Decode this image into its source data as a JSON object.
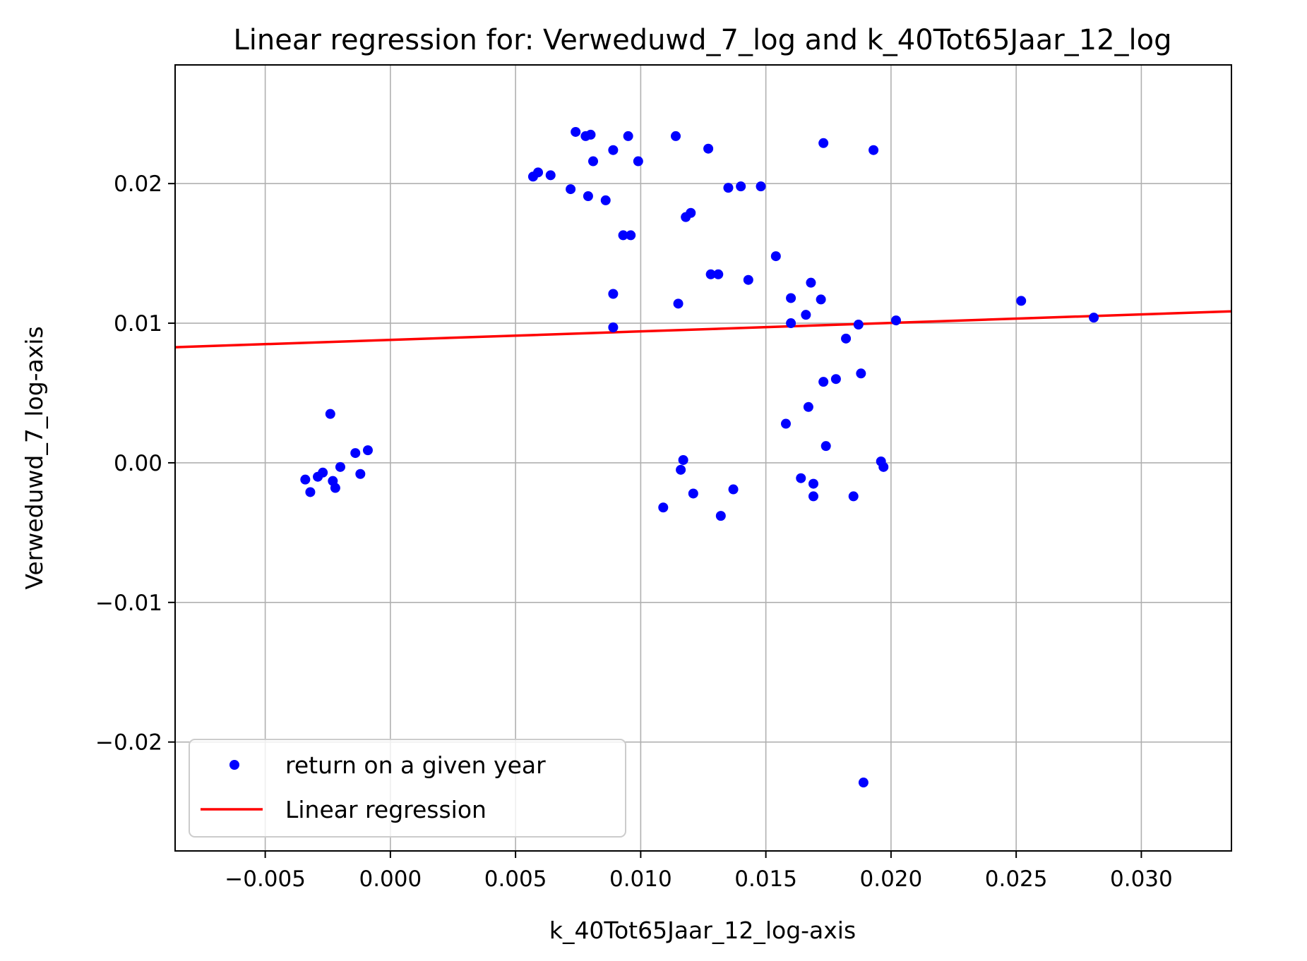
{
  "chart_data": {
    "type": "scatter",
    "title": "Linear regression for: Verweduwd_7_log and k_40Tot65Jaar_12_log",
    "xlabel": "k_40Tot65Jaar_12_log-axis",
    "ylabel": "Verweduwd_7_log-axis",
    "xlim": [
      -0.0086,
      0.0336
    ],
    "ylim": [
      -0.0278,
      0.0285
    ],
    "grid": true,
    "legend_position": "lower-left",
    "x_ticks": [
      {
        "value": -0.005,
        "label": "−0.005"
      },
      {
        "value": 0.0,
        "label": "0.000"
      },
      {
        "value": 0.005,
        "label": "0.005"
      },
      {
        "value": 0.01,
        "label": "0.010"
      },
      {
        "value": 0.015,
        "label": "0.015"
      },
      {
        "value": 0.02,
        "label": "0.020"
      },
      {
        "value": 0.025,
        "label": "0.025"
      },
      {
        "value": 0.03,
        "label": "0.030"
      }
    ],
    "y_ticks": [
      {
        "value": -0.02,
        "label": "−0.02"
      },
      {
        "value": -0.01,
        "label": "−0.01"
      },
      {
        "value": 0.0,
        "label": "0.00"
      },
      {
        "value": 0.01,
        "label": "0.01"
      },
      {
        "value": 0.02,
        "label": "0.02"
      }
    ],
    "series": [
      {
        "name": "return on a given year",
        "kind": "scatter",
        "color": "#0000ff",
        "points": [
          [
            0.0074,
            0.0237
          ],
          [
            0.0078,
            0.0234
          ],
          [
            0.008,
            0.0235
          ],
          [
            0.0095,
            0.0234
          ],
          [
            0.0114,
            0.0234
          ],
          [
            0.0089,
            0.0224
          ],
          [
            0.0127,
            0.0225
          ],
          [
            0.0173,
            0.0229
          ],
          [
            0.0193,
            0.0224
          ],
          [
            0.0081,
            0.0216
          ],
          [
            0.0099,
            0.0216
          ],
          [
            0.0057,
            0.0205
          ],
          [
            0.0059,
            0.0208
          ],
          [
            0.0064,
            0.0206
          ],
          [
            0.0072,
            0.0196
          ],
          [
            0.0079,
            0.0191
          ],
          [
            0.0086,
            0.0188
          ],
          [
            0.0135,
            0.0197
          ],
          [
            0.014,
            0.0198
          ],
          [
            0.0148,
            0.0198
          ],
          [
            0.0118,
            0.0176
          ],
          [
            0.012,
            0.0179
          ],
          [
            0.0093,
            0.0163
          ],
          [
            0.0096,
            0.0163
          ],
          [
            0.0154,
            0.0148
          ],
          [
            0.0128,
            0.0135
          ],
          [
            0.0131,
            0.0135
          ],
          [
            0.0143,
            0.0131
          ],
          [
            0.0168,
            0.0129
          ],
          [
            0.0089,
            0.0121
          ],
          [
            0.0115,
            0.0114
          ],
          [
            0.016,
            0.0118
          ],
          [
            0.0172,
            0.0117
          ],
          [
            0.0252,
            0.0116
          ],
          [
            0.0166,
            0.0106
          ],
          [
            0.0281,
            0.0104
          ],
          [
            0.0089,
            0.0097
          ],
          [
            0.016,
            0.01
          ],
          [
            0.0187,
            0.0099
          ],
          [
            0.0202,
            0.0102
          ],
          [
            0.0182,
            0.0089
          ],
          [
            0.0188,
            0.0064
          ],
          [
            0.0173,
            0.0058
          ],
          [
            0.0178,
            0.006
          ],
          [
            0.0167,
            0.004
          ],
          [
            0.0158,
            0.0028
          ],
          [
            0.0174,
            0.0012
          ],
          [
            -0.0024,
            0.0035
          ],
          [
            -0.0014,
            0.0007
          ],
          [
            -0.0009,
            0.0009
          ],
          [
            -0.002,
            -0.0003
          ],
          [
            -0.0027,
            -0.0007
          ],
          [
            -0.0029,
            -0.001
          ],
          [
            -0.0034,
            -0.0012
          ],
          [
            -0.0023,
            -0.0013
          ],
          [
            -0.0012,
            -0.0008
          ],
          [
            -0.0032,
            -0.0021
          ],
          [
            -0.0022,
            -0.0018
          ],
          [
            0.0117,
            0.0002
          ],
          [
            0.0116,
            -0.0005
          ],
          [
            0.0196,
            0.0001
          ],
          [
            0.0197,
            -0.0003
          ],
          [
            0.0164,
            -0.0011
          ],
          [
            0.0169,
            -0.0015
          ],
          [
            0.0109,
            -0.0032
          ],
          [
            0.0121,
            -0.0022
          ],
          [
            0.0137,
            -0.0019
          ],
          [
            0.0132,
            -0.0038
          ],
          [
            0.0169,
            -0.0024
          ],
          [
            0.0185,
            -0.0024
          ],
          [
            0.0189,
            -0.0229
          ]
        ]
      },
      {
        "name": "Linear regression",
        "kind": "line",
        "color": "#ff0000",
        "points": [
          [
            -0.0086,
            0.00828
          ],
          [
            0.0336,
            0.01085
          ]
        ]
      }
    ]
  }
}
